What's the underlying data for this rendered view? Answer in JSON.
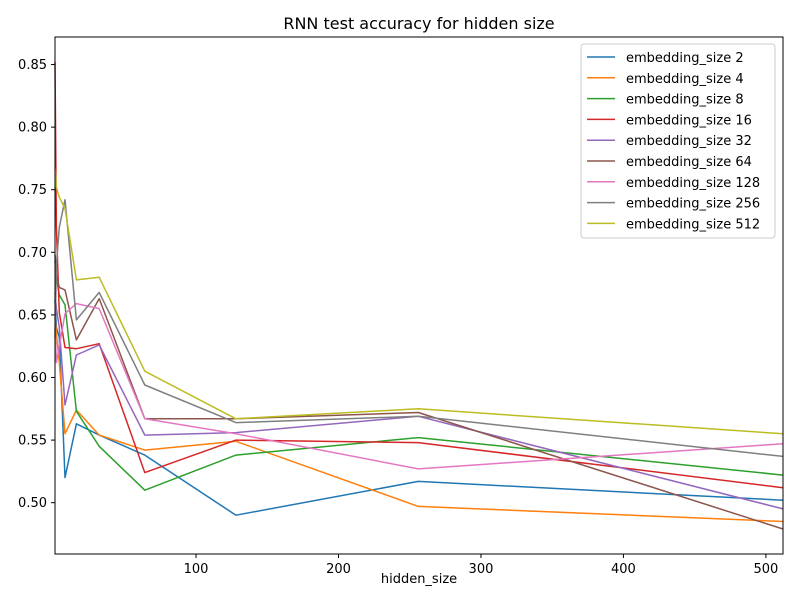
{
  "chart_data": {
    "type": "line",
    "title": "RNN test accuracy for hidden size",
    "xlabel": "hidden_size",
    "ylabel": "",
    "xlim": [
      1,
      512
    ],
    "ylim": [
      0.459,
      0.872
    ],
    "xticks": [
      100,
      200,
      300,
      400,
      500
    ],
    "yticks": [
      0.5,
      0.55,
      0.6,
      0.65,
      0.7,
      0.75,
      0.8,
      0.85
    ],
    "grid": false,
    "legend_position": "top-right",
    "x": [
      1,
      2,
      4,
      8,
      16,
      32,
      64,
      128,
      256,
      512
    ],
    "series": [
      {
        "name": "embedding_size 2",
        "color": "#1f77b4",
        "values": [
          0.662,
          0.64,
          0.632,
          0.52,
          0.563,
          0.554,
          0.538,
          0.49,
          0.517,
          0.502
        ]
      },
      {
        "name": "embedding_size 4",
        "color": "#ff7f0e",
        "values": [
          0.648,
          0.635,
          0.612,
          0.555,
          0.574,
          0.554,
          0.542,
          0.549,
          0.497,
          0.485
        ]
      },
      {
        "name": "embedding_size 8",
        "color": "#2ca02c",
        "values": [
          0.693,
          0.68,
          0.666,
          0.658,
          0.573,
          0.545,
          0.51,
          0.538,
          0.552,
          0.522
        ]
      },
      {
        "name": "embedding_size 16",
        "color": "#d62728",
        "values": [
          0.852,
          0.72,
          0.652,
          0.624,
          0.623,
          0.627,
          0.524,
          0.55,
          0.548,
          0.512
        ]
      },
      {
        "name": "embedding_size 32",
        "color": "#9467bd",
        "values": [
          0.668,
          0.655,
          0.64,
          0.578,
          0.618,
          0.626,
          0.554,
          0.556,
          0.569,
          0.495
        ]
      },
      {
        "name": "embedding_size 64",
        "color": "#8c564b",
        "values": [
          0.698,
          0.682,
          0.672,
          0.67,
          0.63,
          0.663,
          0.567,
          0.567,
          0.572,
          0.479
        ]
      },
      {
        "name": "embedding_size 128",
        "color": "#e377c2",
        "values": [
          0.64,
          0.612,
          0.625,
          0.651,
          0.659,
          0.655,
          0.567,
          0.555,
          0.527,
          0.547
        ]
      },
      {
        "name": "embedding_size 256",
        "color": "#7f7f7f",
        "values": [
          0.631,
          0.69,
          0.72,
          0.742,
          0.646,
          0.668,
          0.594,
          0.564,
          0.569,
          0.537
        ]
      },
      {
        "name": "embedding_size 512",
        "color": "#bcbd22",
        "values": [
          0.768,
          0.752,
          0.744,
          0.735,
          0.678,
          0.68,
          0.605,
          0.567,
          0.575,
          0.555
        ]
      }
    ]
  }
}
